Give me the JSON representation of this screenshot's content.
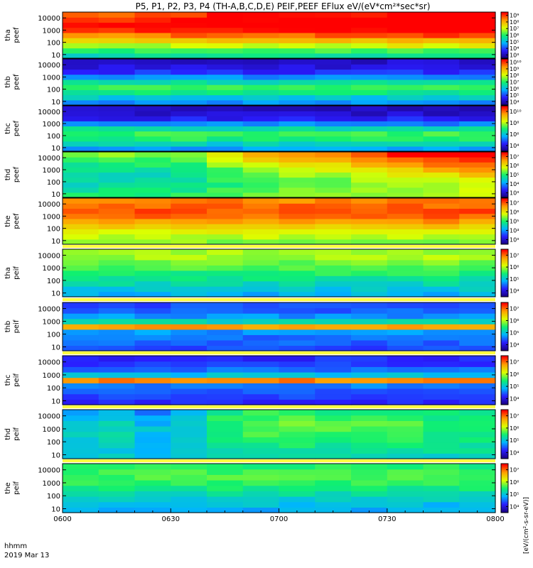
{
  "chart_data": {
    "type": "heatmap",
    "title": "P5, P1, P2, P3, P4 (TH-A,B,C,D,E) PEIF,PEEF EFlux eV/(eV*cm²*sec*sr)",
    "x_axis": {
      "ticks": [
        "0600",
        "0630",
        "0700",
        "0730",
        "0800"
      ],
      "range": [
        "06:00",
        "08:00"
      ],
      "row_labels": [
        "hhmm",
        "2019 Mar 13"
      ]
    },
    "y_axis": {
      "scale": "log",
      "range": [
        5,
        30000
      ],
      "ticks": [
        "10",
        "100",
        "1000",
        "10000"
      ]
    },
    "colorbar_unit": "[eV/(cm²-s-sr-eV)]",
    "colormap": [
      "#1a0080",
      "#2a1cff",
      "#00b4ff",
      "#10f070",
      "#dcff00",
      "#ffa000",
      "#ff0000"
    ],
    "panels": [
      {
        "label_line1": "tha",
        "label_line2": "peef",
        "colorbar_ticks": [
          "10³",
          "10⁴",
          "10⁵",
          "10⁶",
          "10⁷",
          "10⁸",
          "10⁹"
        ],
        "intensity_by_energy": [
          0.42,
          0.5,
          0.62,
          0.74,
          0.86,
          0.93,
          0.97,
          0.95,
          0.9
        ],
        "intensity_trend": [
          0.0,
          0.0,
          0.02,
          0.04,
          0.06,
          0.06,
          0.05,
          0.06,
          0.08,
          0.1,
          0.1,
          0.1
        ]
      },
      {
        "label_line1": "thb",
        "label_line2": "peef",
        "colorbar_ticks": [
          "10⁴",
          "10⁵",
          "10⁶",
          "10⁷",
          "10⁸",
          "10⁹",
          "10¹⁰"
        ],
        "intensity_by_energy": [
          0.3,
          0.38,
          0.48,
          0.52,
          0.44,
          0.3,
          0.18,
          0.12,
          0.1
        ],
        "intensity_trend": [
          0.0,
          0.0,
          0.0,
          0.0,
          0.0,
          0.0,
          0.0,
          0.0,
          0.0,
          0.0,
          0.0,
          0.0
        ]
      },
      {
        "label_line1": "thc",
        "label_line2": "peef",
        "colorbar_ticks": [
          "10⁴",
          "10⁶",
          "10⁸",
          "10¹⁰"
        ],
        "intensity_by_energy": [
          0.32,
          0.4,
          0.5,
          0.53,
          0.44,
          0.28,
          0.16,
          0.1,
          0.08
        ],
        "intensity_trend": [
          0.0,
          0.0,
          0.0,
          0.0,
          0.0,
          0.0,
          0.0,
          0.0,
          0.0,
          0.0,
          0.0,
          0.0
        ]
      },
      {
        "label_line1": "thd",
        "label_line2": "peef",
        "colorbar_ticks": [
          "10³",
          "10⁴",
          "10⁵",
          "10⁶",
          "10⁷"
        ],
        "intensity_by_energy": [
          0.55,
          0.52,
          0.5,
          0.5,
          0.52,
          0.56,
          0.6,
          0.66,
          0.72
        ],
        "intensity_trend": [
          -0.12,
          -0.1,
          -0.1,
          -0.08,
          0.0,
          0.06,
          0.1,
          0.12,
          0.16,
          0.2,
          0.24,
          0.28
        ]
      },
      {
        "label_line1": "the",
        "label_line2": "peef",
        "colorbar_ticks": [
          "10³",
          "10⁴",
          "10⁵",
          "10⁶",
          "10⁷"
        ],
        "intensity_by_energy": [
          0.6,
          0.64,
          0.7,
          0.76,
          0.84,
          0.9,
          0.92,
          0.9,
          0.86
        ],
        "intensity_trend": [
          0.0,
          0.0,
          0.0,
          0.0,
          0.0,
          0.0,
          0.0,
          0.0,
          0.0,
          0.0,
          0.0,
          0.0
        ]
      },
      {
        "label_line1": "tha",
        "label_line2": "peif",
        "colorbar_ticks": [
          "10⁴",
          "10⁵",
          "10⁶",
          "10⁷"
        ],
        "intensity_by_energy": [
          0.34,
          0.38,
          0.42,
          0.46,
          0.5,
          0.54,
          0.58,
          0.62,
          0.62
        ],
        "intensity_trend": [
          0.0,
          0.0,
          0.0,
          0.0,
          0.0,
          0.0,
          0.0,
          0.0,
          0.0,
          0.0,
          0.0,
          0.0
        ]
      },
      {
        "label_line1": "thb",
        "label_line2": "peif",
        "colorbar_ticks": [
          "10⁴",
          "10⁵",
          "10⁶",
          "10⁷"
        ],
        "intensity_by_energy": [
          0.22,
          0.24,
          0.26,
          0.3,
          0.82,
          0.42,
          0.3,
          0.24,
          0.22
        ],
        "intensity_trend": [
          0.0,
          0.0,
          0.0,
          0.0,
          0.0,
          0.0,
          0.0,
          0.0,
          0.0,
          0.0,
          0.0,
          0.0
        ]
      },
      {
        "label_line1": "thc",
        "label_line2": "peif",
        "colorbar_ticks": [
          "10⁴",
          "10⁵",
          "10⁶",
          "10⁷"
        ],
        "intensity_by_energy": [
          0.16,
          0.2,
          0.24,
          0.28,
          0.86,
          0.36,
          0.26,
          0.2,
          0.18
        ],
        "intensity_trend": [
          0.0,
          0.0,
          0.0,
          0.0,
          0.0,
          0.0,
          0.0,
          0.0,
          0.0,
          0.0,
          0.0,
          0.0
        ]
      },
      {
        "label_line1": "thd",
        "label_line2": "peif",
        "colorbar_ticks": [
          "10⁴",
          "10⁵",
          "10⁶",
          "10⁷"
        ],
        "intensity_by_energy": [
          0.42,
          0.44,
          0.46,
          0.48,
          0.5,
          0.52,
          0.52,
          0.5,
          0.48
        ],
        "intensity_trend": [
          -0.12,
          -0.1,
          -0.16,
          -0.12,
          0.0,
          0.04,
          0.04,
          0.02,
          0.02,
          0.02,
          0.0,
          0.0
        ]
      },
      {
        "label_line1": "the",
        "label_line2": "peif",
        "colorbar_ticks": [
          "10⁴",
          "10⁵",
          "10⁶",
          "10⁷"
        ],
        "intensity_by_energy": [
          0.32,
          0.36,
          0.4,
          0.44,
          0.48,
          0.52,
          0.54,
          0.54,
          0.5
        ],
        "intensity_trend": [
          0.0,
          0.0,
          0.0,
          0.0,
          0.0,
          0.0,
          0.0,
          0.0,
          0.0,
          0.0,
          0.0,
          0.0
        ]
      }
    ]
  }
}
